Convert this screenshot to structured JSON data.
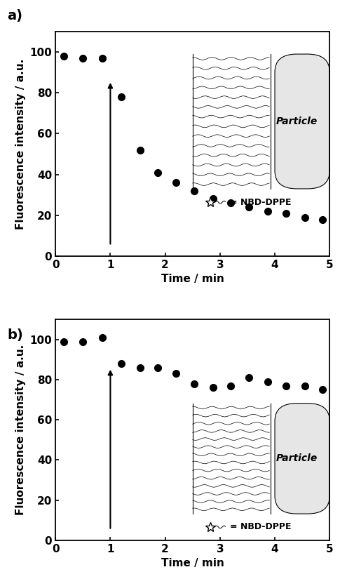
{
  "chart_data": [
    {
      "type": "scatter",
      "title": "a)",
      "x_label": "Time / min",
      "y_label": "Fluorescence intensity / a.u.",
      "x": [
        0.15,
        0.5,
        0.85,
        1.2,
        1.55,
        1.87,
        2.2,
        2.53,
        2.87,
        3.2,
        3.53,
        3.87,
        4.2,
        4.55,
        4.87
      ],
      "values": [
        98,
        97,
        97,
        78,
        52,
        41,
        36,
        32,
        28,
        26,
        24,
        22,
        21,
        19,
        18
      ],
      "color": "#000000",
      "marker": "o",
      "xlim": [
        0,
        5
      ],
      "xticks": [
        0,
        1,
        2,
        3,
        4,
        5
      ],
      "ylim": [
        0,
        110
      ],
      "yticks": [
        0,
        20,
        40,
        60,
        80,
        100
      ],
      "arrow": {
        "x": 1,
        "from": 5,
        "to": 86
      },
      "annotations": [
        "Particle",
        "= NBD-DPPE"
      ]
    },
    {
      "type": "scatter",
      "title": "b)",
      "x_label": "Time / min",
      "y_label": "Fluorescence intensity / a.u.",
      "x": [
        0.15,
        0.5,
        0.85,
        1.2,
        1.55,
        1.87,
        2.2,
        2.53,
        2.87,
        3.2,
        3.53,
        3.87,
        4.2,
        4.55,
        4.87
      ],
      "values": [
        99,
        99,
        101,
        88,
        86,
        86,
        83,
        78,
        76,
        77,
        81,
        79,
        77,
        77,
        75
      ],
      "color": "#000000",
      "marker": "o",
      "xlim": [
        0,
        5
      ],
      "xticks": [
        0,
        1,
        2,
        3,
        4,
        5
      ],
      "ylim": [
        0,
        110
      ],
      "yticks": [
        0,
        20,
        40,
        60,
        80,
        100
      ],
      "arrow": {
        "x": 1,
        "from": 5,
        "to": 86
      },
      "annotations": [
        "Particle",
        "= NBD-DPPE"
      ]
    }
  ]
}
